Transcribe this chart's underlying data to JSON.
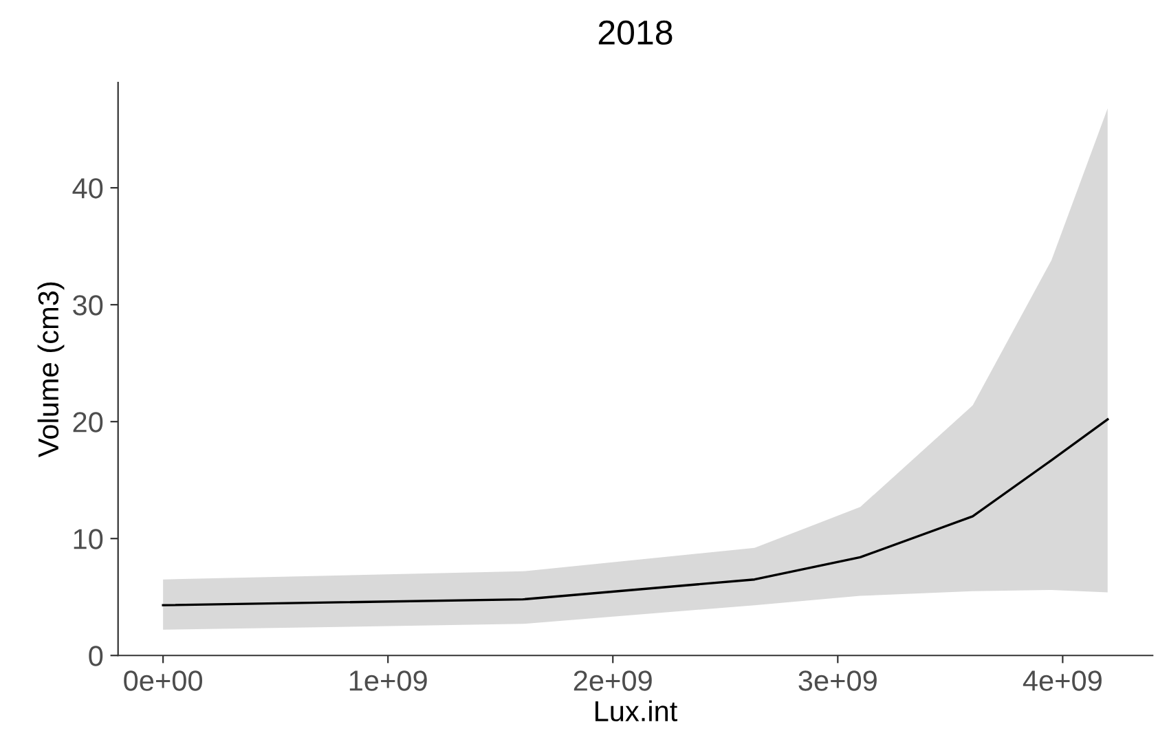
{
  "chart_data": {
    "type": "line",
    "title": "2018",
    "xlabel": "Lux.int",
    "ylabel": "Volume (cm3)",
    "x": [
      0,
      1600000000,
      2630000000,
      3100000000,
      3600000000,
      3950000000,
      4200000000
    ],
    "series": [
      {
        "color": "#000000",
        "values": [
          4.3,
          4.8,
          6.5,
          8.4,
          11.9,
          16.7,
          20.2
        ],
        "lower": [
          2.2,
          2.7,
          4.3,
          5.1,
          5.5,
          5.6,
          5.4
        ],
        "upper": [
          6.5,
          7.2,
          9.2,
          12.7,
          21.4,
          33.8,
          46.8
        ]
      }
    ],
    "xlim": [
      -200000000,
      4400000000
    ],
    "ylim": [
      0,
      49
    ],
    "xticks": [
      {
        "value": 0,
        "label": "0e+00"
      },
      {
        "value": 1000000000,
        "label": "1e+09"
      },
      {
        "value": 2000000000,
        "label": "2e+09"
      },
      {
        "value": 3000000000,
        "label": "3e+09"
      },
      {
        "value": 4000000000,
        "label": "4e+09"
      }
    ],
    "yticks": [
      0,
      10,
      20,
      30,
      40
    ],
    "grid": false,
    "legend": false,
    "marker": "none",
    "line_style": "solid"
  }
}
